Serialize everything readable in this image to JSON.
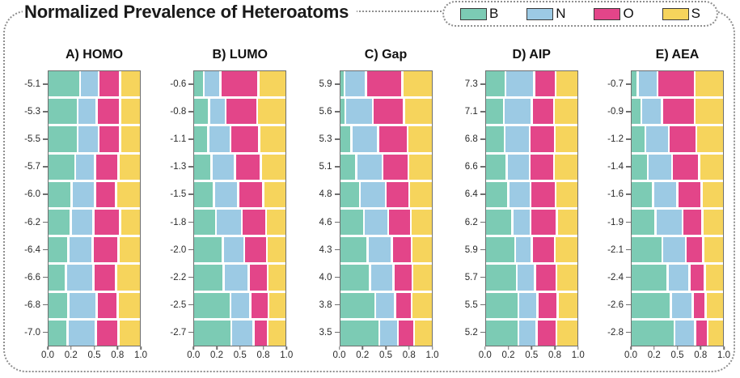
{
  "figure": {
    "title": "Normalized Prevalence of Heteroatoms"
  },
  "legend": {
    "items": [
      {
        "label": "B",
        "color": "#7CCBB4"
      },
      {
        "label": "N",
        "color": "#9CCAE4"
      },
      {
        "label": "O",
        "color": "#E34589"
      },
      {
        "label": "S",
        "color": "#F6D45C"
      }
    ]
  },
  "axes": {
    "xlim": [
      0,
      1
    ],
    "x_ticks": [
      {
        "pos": 0,
        "label": "0.0"
      },
      {
        "pos": 0.25,
        "label": "0.2"
      },
      {
        "pos": 0.5,
        "label": "0.5"
      },
      {
        "pos": 0.75,
        "label": "0.8"
      },
      {
        "pos": 1,
        "label": "1.0"
      }
    ]
  },
  "chart_data": [
    {
      "type": "bar",
      "stacked": true,
      "orientation": "horizontal",
      "id": "homo",
      "title": "A) HOMO",
      "xlim": [
        0,
        1
      ],
      "categories": [
        "-5.1",
        "-5.3",
        "-5.5",
        "-5.7",
        "-6.0",
        "-6.2",
        "-6.4",
        "-6.6",
        "-6.8",
        "-7.0"
      ],
      "series": [
        {
          "name": "B",
          "values": [
            0.36,
            0.33,
            0.33,
            0.3,
            0.26,
            0.25,
            0.22,
            0.19,
            0.22,
            0.21
          ]
        },
        {
          "name": "N",
          "values": [
            0.19,
            0.2,
            0.22,
            0.21,
            0.25,
            0.24,
            0.26,
            0.3,
            0.31,
            0.31
          ]
        },
        {
          "name": "O",
          "values": [
            0.23,
            0.25,
            0.23,
            0.25,
            0.22,
            0.29,
            0.28,
            0.24,
            0.22,
            0.24
          ]
        },
        {
          "name": "S",
          "values": [
            0.22,
            0.22,
            0.22,
            0.24,
            0.27,
            0.22,
            0.24,
            0.27,
            0.25,
            0.24
          ]
        }
      ]
    },
    {
      "type": "bar",
      "stacked": true,
      "orientation": "horizontal",
      "id": "lumo",
      "title": "B) LUMO",
      "xlim": [
        0,
        1
      ],
      "categories": [
        "-0.6",
        "-0.8",
        "-1.1",
        "-1.3",
        "-1.5",
        "-1.8",
        "-2.0",
        "-2.2",
        "-2.5",
        "-2.7"
      ],
      "series": [
        {
          "name": "B",
          "values": [
            0.1,
            0.16,
            0.15,
            0.19,
            0.22,
            0.24,
            0.32,
            0.33,
            0.41,
            0.42
          ]
        },
        {
          "name": "N",
          "values": [
            0.17,
            0.17,
            0.24,
            0.25,
            0.26,
            0.28,
            0.23,
            0.27,
            0.21,
            0.24
          ]
        },
        {
          "name": "O",
          "values": [
            0.42,
            0.35,
            0.31,
            0.28,
            0.27,
            0.26,
            0.24,
            0.2,
            0.19,
            0.14
          ]
        },
        {
          "name": "S",
          "values": [
            0.31,
            0.32,
            0.3,
            0.28,
            0.25,
            0.22,
            0.21,
            0.2,
            0.19,
            0.2
          ]
        }
      ]
    },
    {
      "type": "bar",
      "stacked": true,
      "orientation": "horizontal",
      "id": "gap",
      "title": "C) Gap",
      "xlim": [
        0,
        1
      ],
      "categories": [
        "5.9",
        "5.6",
        "5.3",
        "5.1",
        "4.8",
        "4.6",
        "4.3",
        "4.0",
        "3.8",
        "3.5"
      ],
      "series": [
        {
          "name": "B",
          "values": [
            0.04,
            0.05,
            0.12,
            0.18,
            0.22,
            0.27,
            0.31,
            0.34,
            0.4,
            0.45
          ]
        },
        {
          "name": "N",
          "values": [
            0.23,
            0.3,
            0.29,
            0.28,
            0.28,
            0.26,
            0.26,
            0.25,
            0.21,
            0.19
          ]
        },
        {
          "name": "O",
          "values": [
            0.4,
            0.34,
            0.32,
            0.28,
            0.25,
            0.24,
            0.21,
            0.2,
            0.17,
            0.17
          ]
        },
        {
          "name": "S",
          "values": [
            0.33,
            0.31,
            0.27,
            0.26,
            0.25,
            0.23,
            0.22,
            0.21,
            0.22,
            0.19
          ]
        }
      ]
    },
    {
      "type": "bar",
      "stacked": true,
      "orientation": "horizontal",
      "id": "aip",
      "title": "D) AIP",
      "xlim": [
        0,
        1
      ],
      "categories": [
        "7.3",
        "7.1",
        "6.8",
        "6.6",
        "6.4",
        "6.2",
        "5.9",
        "5.7",
        "5.5",
        "5.2"
      ],
      "series": [
        {
          "name": "B",
          "values": [
            0.22,
            0.2,
            0.21,
            0.23,
            0.25,
            0.3,
            0.33,
            0.35,
            0.37,
            0.37
          ]
        },
        {
          "name": "N",
          "values": [
            0.31,
            0.3,
            0.27,
            0.25,
            0.24,
            0.19,
            0.17,
            0.19,
            0.2,
            0.19
          ]
        },
        {
          "name": "O",
          "values": [
            0.23,
            0.24,
            0.27,
            0.26,
            0.27,
            0.28,
            0.25,
            0.23,
            0.21,
            0.21
          ]
        },
        {
          "name": "S",
          "values": [
            0.24,
            0.26,
            0.25,
            0.26,
            0.24,
            0.23,
            0.25,
            0.23,
            0.22,
            0.23
          ]
        }
      ]
    },
    {
      "type": "bar",
      "stacked": true,
      "orientation": "horizontal",
      "id": "aea",
      "title": "E) AEA",
      "xlim": [
        0,
        1
      ],
      "categories": [
        "-0.7",
        "-0.9",
        "-1.2",
        "-1.4",
        "-1.6",
        "-1.9",
        "-2.1",
        "-2.4",
        "-2.6",
        "-2.8"
      ],
      "series": [
        {
          "name": "B",
          "values": [
            0.06,
            0.1,
            0.15,
            0.18,
            0.24,
            0.27,
            0.35,
            0.41,
            0.45,
            0.49
          ]
        },
        {
          "name": "N",
          "values": [
            0.21,
            0.22,
            0.25,
            0.26,
            0.26,
            0.29,
            0.25,
            0.23,
            0.23,
            0.22
          ]
        },
        {
          "name": "O",
          "values": [
            0.41,
            0.36,
            0.3,
            0.29,
            0.26,
            0.21,
            0.18,
            0.16,
            0.13,
            0.12
          ]
        },
        {
          "name": "S",
          "values": [
            0.32,
            0.32,
            0.3,
            0.27,
            0.24,
            0.23,
            0.22,
            0.2,
            0.19,
            0.17
          ]
        }
      ]
    }
  ]
}
